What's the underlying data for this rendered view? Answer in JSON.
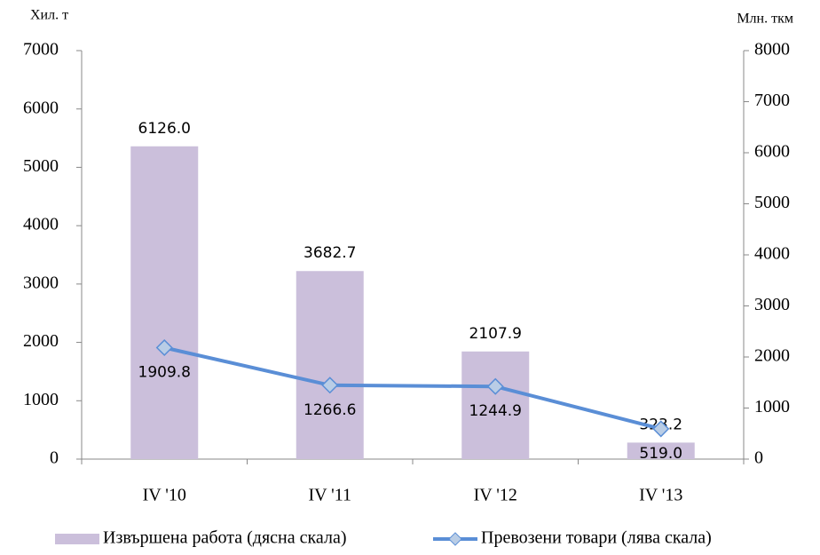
{
  "chart_data": {
    "type": "bar-line",
    "y_label": "Хил. т",
    "y2_label": "Млн. ткм",
    "categories": [
      "IV '10",
      "IV '11",
      "IV '12",
      "IV '13"
    ],
    "series": [
      {
        "name": "Извършена работа (дясна скала)",
        "type": "bar",
        "axis": "y2",
        "color": "#cbbfdb",
        "values": [
          6126.0,
          3682.7,
          2107.9,
          323.2
        ],
        "value_labels": [
          "6126.0",
          "3682.7",
          "2107.9",
          "323.2"
        ]
      },
      {
        "name": "Превозени товари (лява скала)",
        "type": "line",
        "axis": "y",
        "color": "#5a8ed6",
        "values": [
          1909.8,
          1266.6,
          1244.9,
          519.0
        ],
        "value_labels": [
          "1909.8",
          "1266.6",
          "1244.9",
          "519.0"
        ]
      }
    ],
    "ylim": [
      0,
      7000
    ],
    "yticks": [
      0,
      1000,
      2000,
      3000,
      4000,
      5000,
      6000,
      7000
    ],
    "y2lim": [
      0,
      8000
    ],
    "y2ticks": [
      0,
      1000,
      2000,
      3000,
      4000,
      5000,
      6000,
      7000,
      8000
    ]
  }
}
